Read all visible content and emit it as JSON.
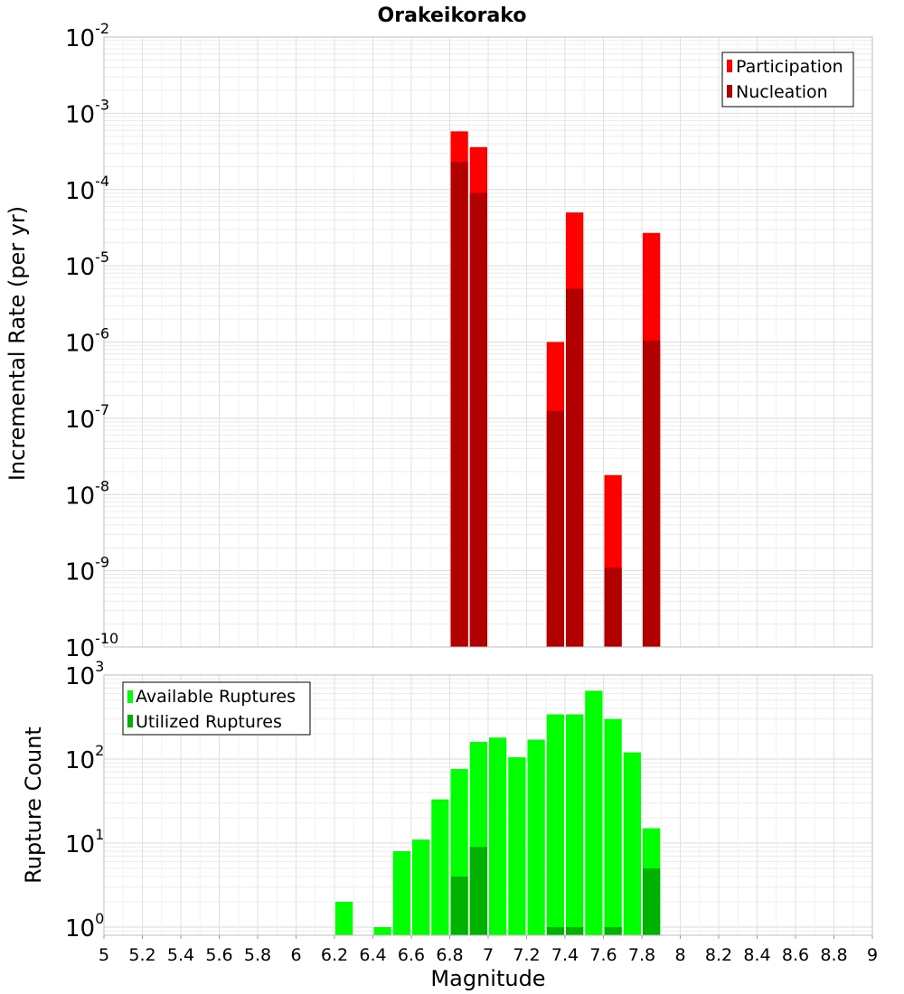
{
  "chart_data": [
    {
      "type": "bar",
      "title": "Orakeikorako",
      "xlabel": "",
      "ylabel": "Incremental Rate (per yr)",
      "yscale": "log",
      "xlim": [
        5,
        9
      ],
      "ylim": [
        1e-10,
        0.01
      ],
      "bar_width": 0.1,
      "grid": true,
      "legend_position": "top-right",
      "colors": {
        "participation": "#ff0000",
        "nucleation": "#b20000"
      },
      "series": [
        {
          "name": "Participation",
          "x": [
            6.85,
            6.95,
            7.35,
            7.45,
            7.65,
            7.85
          ],
          "values": [
            0.00058,
            0.00036,
            1e-06,
            5e-05,
            1.8e-08,
            2.7e-05
          ]
        },
        {
          "name": "Nucleation",
          "x": [
            6.85,
            6.95,
            7.35,
            7.45,
            7.65,
            7.85
          ],
          "values": [
            0.00023,
            9e-05,
            1.25e-07,
            5e-06,
            1.1e-09,
            1.05e-06
          ]
        }
      ],
      "y_tick_exponents": [
        "-2",
        "-3",
        "-4",
        "-5",
        "-6",
        "-7",
        "-8",
        "-9",
        "-10"
      ]
    },
    {
      "type": "bar",
      "title": "",
      "xlabel": "Magnitude",
      "ylabel": "Rupture Count",
      "yscale": "log",
      "xlim": [
        5,
        9
      ],
      "ylim": [
        0.8,
        1000
      ],
      "bar_width": 0.1,
      "grid": true,
      "legend_position": "top-left",
      "colors": {
        "available": "#00ff00",
        "utilized": "#00b200"
      },
      "series": [
        {
          "name": "Available Ruptures",
          "x": [
            6.25,
            6.45,
            6.55,
            6.65,
            6.75,
            6.85,
            6.95,
            7.05,
            7.15,
            7.25,
            7.35,
            7.45,
            7.55,
            7.65,
            7.75,
            7.85
          ],
          "values": [
            2,
            1,
            8,
            11,
            33,
            76,
            160,
            180,
            105,
            170,
            340,
            340,
            650,
            300,
            120,
            15
          ]
        },
        {
          "name": "Utilized Ruptures",
          "x": [
            6.85,
            6.95,
            7.35,
            7.45,
            7.65,
            7.85
          ],
          "values": [
            4,
            9,
            1,
            1,
            1,
            5
          ]
        }
      ],
      "y_tick_exponents": [
        "3",
        "2",
        "1",
        "0"
      ],
      "x_ticks": [
        "5",
        "5.2",
        "5.4",
        "5.6",
        "5.8",
        "6",
        "6.2",
        "6.4",
        "6.6",
        "6.8",
        "7",
        "7.2",
        "7.4",
        "7.6",
        "7.8",
        "8",
        "8.2",
        "8.4",
        "8.6",
        "8.8",
        "9"
      ]
    }
  ]
}
